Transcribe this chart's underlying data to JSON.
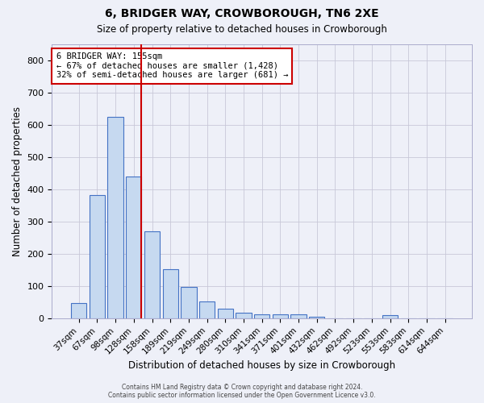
{
  "title": "6, BRIDGER WAY, CROWBOROUGH, TN6 2XE",
  "subtitle": "Size of property relative to detached houses in Crowborough",
  "xlabel": "Distribution of detached houses by size in Crowborough",
  "ylabel": "Number of detached properties",
  "categories": [
    "37sqm",
    "67sqm",
    "98sqm",
    "128sqm",
    "158sqm",
    "189sqm",
    "219sqm",
    "249sqm",
    "280sqm",
    "310sqm",
    "341sqm",
    "371sqm",
    "401sqm",
    "432sqm",
    "462sqm",
    "492sqm",
    "523sqm",
    "553sqm",
    "583sqm",
    "614sqm",
    "644sqm"
  ],
  "values": [
    47,
    382,
    624,
    439,
    270,
    152,
    97,
    53,
    30,
    18,
    11,
    11,
    13,
    5,
    0,
    0,
    0,
    9,
    0,
    0,
    0
  ],
  "bar_color": "#c6d9f0",
  "bar_edge_color": "#4472c4",
  "ylim_max": 850,
  "yticks": [
    0,
    100,
    200,
    300,
    400,
    500,
    600,
    700,
    800
  ],
  "property_label": "6 BRIDGER WAY: 155sqm",
  "annotation_line1": "← 67% of detached houses are smaller (1,428)",
  "annotation_line2": "32% of semi-detached houses are larger (681) →",
  "vline_color": "#cc0000",
  "annotation_box_edge": "#cc0000",
  "grid_color": "#c8c8d8",
  "background_color": "#eef0f8",
  "footer_line1": "Contains HM Land Registry data © Crown copyright and database right 2024.",
  "footer_line2": "Contains public sector information licensed under the Open Government Licence v3.0."
}
